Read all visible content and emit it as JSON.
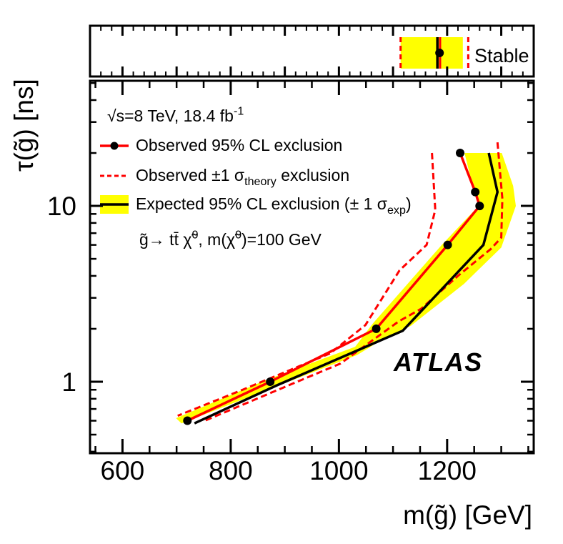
{
  "figure": {
    "background": "#ffffff",
    "lumi_label": "√s=8 TeV, 18.4 fb^{-1}",
    "process_label": "g̃→ tt̄ χ̃^{0}, m(χ̃^{0})=100 GeV",
    "experiment_label": "ATLAS",
    "legend": [
      {
        "id": "observed",
        "style": "red-line-dot",
        "label": "Observed 95% CL exclusion"
      },
      {
        "id": "theory",
        "style": "red-dashed",
        "label": "Observed ±1 σ_{theory} exclusion"
      },
      {
        "id": "expected",
        "style": "yellow-band-black-line",
        "label": "Expected 95% CL exclusion (± 1 σ_{exp})"
      }
    ]
  },
  "chart_data": {
    "type": "line",
    "title": "",
    "xlabel": "m(g̃) [GeV]",
    "ylabel": "τ(g̃) [ns]",
    "x_scale": "linear",
    "y_scale": "log",
    "xlim": [
      540,
      1360
    ],
    "ylim": [
      0.392,
      51.5
    ],
    "x_major_ticks": [
      600,
      800,
      1000,
      1200
    ],
    "x_minor_step": 50,
    "y_major_ticks": [
      1,
      10
    ],
    "y_minor_ticks": [
      0.4,
      0.5,
      0.6,
      0.7,
      0.8,
      0.9,
      2,
      3,
      4,
      5,
      6,
      7,
      8,
      9,
      20,
      30,
      40,
      50
    ],
    "grid": false,
    "legend_position": "upper-left",
    "colors": {
      "observed": "#ff0000",
      "expected": "#000000",
      "expected_band": "#ffff00",
      "theory": "#ff0000"
    },
    "series": [
      {
        "name": "Observed 95% CL exclusion",
        "kind": "line+markers",
        "marker": "filled-circle",
        "points_m_tau": [
          [
            720,
            0.6
          ],
          [
            873,
            1.0
          ],
          [
            1069,
            2.0
          ],
          [
            1201,
            6.0
          ],
          [
            1260,
            10.0
          ],
          [
            1252,
            12.0
          ],
          [
            1224,
            20.0
          ]
        ]
      },
      {
        "name": "Expected 95% CL exclusion",
        "kind": "line",
        "points_m_tau": [
          [
            733,
            0.58
          ],
          [
            884,
            0.95
          ],
          [
            1118,
            1.95
          ],
          [
            1267,
            6.0
          ],
          [
            1293,
            12.0
          ],
          [
            1277,
            20.0
          ]
        ]
      },
      {
        "name": "Expected ±1 sigma_exp band",
        "kind": "band",
        "edge_low_m_tau": [
          [
            1232,
            20
          ],
          [
            1250,
            12
          ],
          [
            1258,
            10
          ],
          [
            1190,
            6.0
          ],
          [
            1063,
            2.15
          ],
          [
            1030,
            1.58
          ],
          [
            868,
            1.03
          ],
          [
            699,
            0.62
          ]
        ],
        "edge_high_m_tau": [
          [
            709,
            0.58
          ],
          [
            1034,
            1.42
          ],
          [
            1088,
            1.8
          ],
          [
            1133,
            2.08
          ],
          [
            1231,
            3.6
          ],
          [
            1300,
            5.8
          ],
          [
            1327,
            10
          ],
          [
            1322,
            13
          ],
          [
            1301,
            20
          ]
        ]
      },
      {
        "name": "Observed -1 sigma_theory",
        "kind": "dashed-line",
        "points_m_tau": [
          [
            1172,
            20
          ],
          [
            1178,
            9.5
          ],
          [
            1162,
            6.0
          ],
          [
            1112,
            4.3
          ],
          [
            1049,
            2.1
          ],
          [
            984,
            1.45
          ],
          [
            822,
            0.9
          ],
          [
            702,
            0.64
          ]
        ]
      },
      {
        "name": "Observed +1 sigma_theory",
        "kind": "dashed-line",
        "points_m_tau": [
          [
            1293,
            23
          ],
          [
            1302,
            11
          ],
          [
            1300,
            6.6
          ],
          [
            1281,
            5.7
          ],
          [
            1220,
            4.0
          ],
          [
            1152,
            2.6
          ],
          [
            1110,
            2.2
          ],
          [
            1003,
            1.27
          ],
          [
            884,
            0.89
          ],
          [
            752,
            0.6
          ]
        ]
      }
    ],
    "stable_panel": {
      "label": "Stable",
      "x_major_step": 100,
      "x_minor_step": 20,
      "expected_band_m": [
        1114,
        1229
      ],
      "theory_band_m": [
        1114,
        1239
      ],
      "expected_m": 1182,
      "observed_m": 1187,
      "observed_marker_m": 1186
    }
  }
}
